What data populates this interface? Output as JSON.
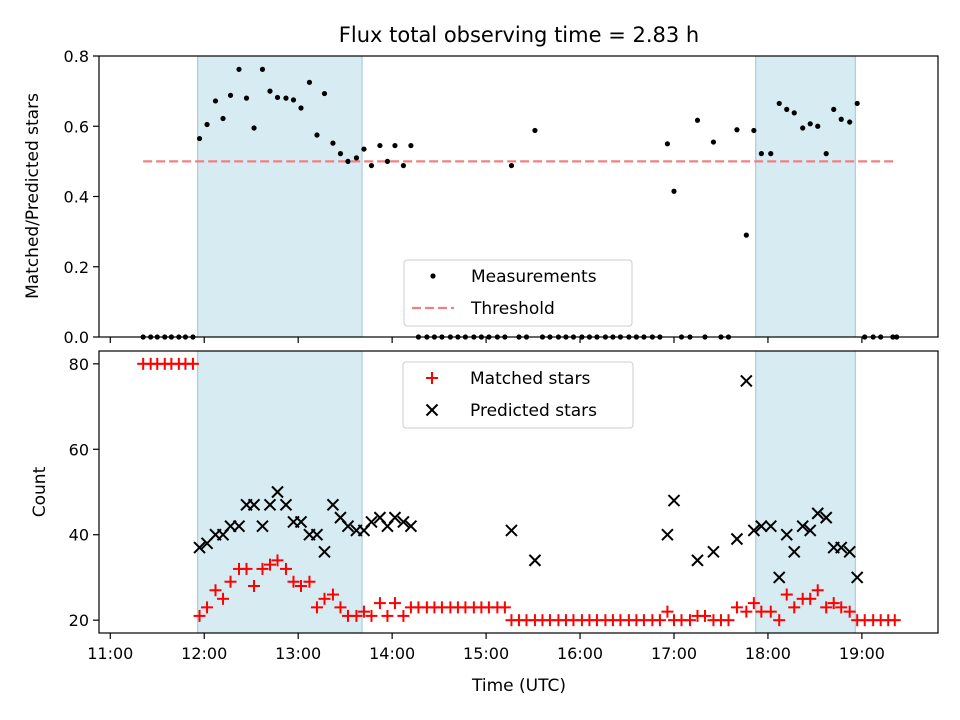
{
  "title": "Flux total observing time = 2.83 h",
  "chart_data": [
    {
      "type": "scatter",
      "ylabel": "Matched/Predicted stars",
      "xlim": [
        10.88,
        19.81
      ],
      "ylim": [
        0,
        0.8
      ],
      "yticks": [
        0.0,
        0.2,
        0.4,
        0.6,
        0.8
      ],
      "ytick_labels": [
        "0.0",
        "0.2",
        "0.4",
        "0.6",
        "0.8"
      ],
      "shaded_regions": [
        [
          11.93,
          13.68
        ],
        [
          17.87,
          18.93
        ]
      ],
      "threshold": {
        "value": 0.5,
        "x_range": [
          11.35,
          19.35
        ],
        "color": "#f08080"
      },
      "legend": {
        "position": "lower-center",
        "entries": [
          "Measurements",
          "Threshold"
        ]
      },
      "series": [
        {
          "name": "Measurements",
          "marker": "dot",
          "color": "#000000",
          "points": [
            [
              11.35,
              0
            ],
            [
              11.43,
              0
            ],
            [
              11.5,
              0
            ],
            [
              11.58,
              0
            ],
            [
              11.65,
              0
            ],
            [
              11.73,
              0
            ],
            [
              11.8,
              0
            ],
            [
              11.88,
              0
            ],
            [
              11.95,
              0.565
            ],
            [
              12.03,
              0.605
            ],
            [
              12.12,
              0.672
            ],
            [
              12.2,
              0.622
            ],
            [
              12.28,
              0.688
            ],
            [
              12.37,
              0.762
            ],
            [
              12.45,
              0.68
            ],
            [
              12.53,
              0.595
            ],
            [
              12.62,
              0.762
            ],
            [
              12.7,
              0.7
            ],
            [
              12.78,
              0.682
            ],
            [
              12.87,
              0.68
            ],
            [
              12.95,
              0.675
            ],
            [
              13.03,
              0.652
            ],
            [
              13.12,
              0.725
            ],
            [
              13.2,
              0.575
            ],
            [
              13.28,
              0.693
            ],
            [
              13.37,
              0.552
            ],
            [
              13.45,
              0.522
            ],
            [
              13.53,
              0.5
            ],
            [
              13.62,
              0.51
            ],
            [
              13.7,
              0.535
            ],
            [
              13.78,
              0.488
            ],
            [
              13.87,
              0.545
            ],
            [
              13.95,
              0.5
            ],
            [
              14.03,
              0.545
            ],
            [
              14.12,
              0.488
            ],
            [
              14.2,
              0.545
            ],
            [
              14.28,
              0
            ],
            [
              14.37,
              0
            ],
            [
              14.45,
              0
            ],
            [
              14.53,
              0
            ],
            [
              14.62,
              0
            ],
            [
              14.7,
              0
            ],
            [
              14.78,
              0
            ],
            [
              14.87,
              0
            ],
            [
              14.95,
              0
            ],
            [
              15.03,
              0
            ],
            [
              15.12,
              0
            ],
            [
              15.2,
              0
            ],
            [
              15.27,
              0.488
            ],
            [
              15.35,
              0
            ],
            [
              15.43,
              0
            ],
            [
              15.52,
              0.588
            ],
            [
              15.6,
              0
            ],
            [
              15.68,
              0
            ],
            [
              15.77,
              0
            ],
            [
              15.85,
              0
            ],
            [
              15.93,
              0
            ],
            [
              16.02,
              0
            ],
            [
              16.1,
              0
            ],
            [
              16.18,
              0
            ],
            [
              16.27,
              0
            ],
            [
              16.35,
              0
            ],
            [
              16.43,
              0
            ],
            [
              16.52,
              0
            ],
            [
              16.6,
              0
            ],
            [
              16.68,
              0
            ],
            [
              16.77,
              0
            ],
            [
              16.85,
              0
            ],
            [
              16.93,
              0.55
            ],
            [
              17.0,
              0.415
            ],
            [
              17.08,
              0
            ],
            [
              17.17,
              0
            ],
            [
              17.25,
              0.617
            ],
            [
              17.33,
              0
            ],
            [
              17.42,
              0.555
            ],
            [
              17.5,
              0
            ],
            [
              17.58,
              0
            ],
            [
              17.67,
              0.59
            ],
            [
              17.77,
              0.29
            ],
            [
              17.85,
              0.588
            ],
            [
              17.93,
              0.522
            ],
            [
              18.03,
              0.522
            ],
            [
              18.12,
              0.665
            ],
            [
              18.2,
              0.648
            ],
            [
              18.28,
              0.638
            ],
            [
              18.37,
              0.595
            ],
            [
              18.45,
              0.607
            ],
            [
              18.53,
              0.6
            ],
            [
              18.62,
              0.522
            ],
            [
              18.7,
              0.648
            ],
            [
              18.78,
              0.62
            ],
            [
              18.87,
              0.612
            ],
            [
              18.95,
              0.665
            ],
            [
              19.03,
              0
            ],
            [
              19.12,
              0
            ],
            [
              19.2,
              0
            ],
            [
              19.33,
              0
            ],
            [
              19.37,
              0
            ]
          ]
        }
      ]
    },
    {
      "type": "scatter",
      "xlabel": "Time (UTC)",
      "ylabel": "Count",
      "xlim": [
        10.88,
        19.81
      ],
      "ylim": [
        17,
        83
      ],
      "xticks": [
        11,
        12,
        13,
        14,
        15,
        16,
        17,
        18,
        19
      ],
      "xtick_labels": [
        "11:00",
        "12:00",
        "13:00",
        "14:00",
        "15:00",
        "16:00",
        "17:00",
        "18:00",
        "19:00"
      ],
      "yticks": [
        20,
        40,
        60,
        80
      ],
      "ytick_labels": [
        "20",
        "40",
        "60",
        "80"
      ],
      "shaded_regions": [
        [
          11.93,
          13.68
        ],
        [
          17.87,
          18.93
        ]
      ],
      "legend": {
        "position": "upper-center",
        "entries": [
          "Matched stars",
          "Predicted stars"
        ]
      },
      "series": [
        {
          "name": "Matched stars",
          "marker": "plus",
          "color": "#ff0000",
          "points": [
            [
              11.35,
              80
            ],
            [
              11.43,
              80
            ],
            [
              11.5,
              80
            ],
            [
              11.58,
              80
            ],
            [
              11.65,
              80
            ],
            [
              11.73,
              80
            ],
            [
              11.8,
              80
            ],
            [
              11.88,
              80
            ],
            [
              11.95,
              21
            ],
            [
              12.03,
              23
            ],
            [
              12.12,
              27
            ],
            [
              12.2,
              25
            ],
            [
              12.28,
              29
            ],
            [
              12.37,
              32
            ],
            [
              12.45,
              32
            ],
            [
              12.53,
              28
            ],
            [
              12.62,
              32
            ],
            [
              12.7,
              33
            ],
            [
              12.78,
              34
            ],
            [
              12.87,
              32
            ],
            [
              12.95,
              29
            ],
            [
              13.03,
              28
            ],
            [
              13.12,
              29
            ],
            [
              13.2,
              23
            ],
            [
              13.28,
              25
            ],
            [
              13.37,
              26
            ],
            [
              13.45,
              23
            ],
            [
              13.53,
              21
            ],
            [
              13.62,
              21
            ],
            [
              13.7,
              22
            ],
            [
              13.78,
              21
            ],
            [
              13.87,
              24
            ],
            [
              13.95,
              21
            ],
            [
              14.03,
              24
            ],
            [
              14.12,
              21
            ],
            [
              14.2,
              23
            ],
            [
              14.28,
              23
            ],
            [
              14.37,
              23
            ],
            [
              14.45,
              23
            ],
            [
              14.53,
              23
            ],
            [
              14.62,
              23
            ],
            [
              14.7,
              23
            ],
            [
              14.78,
              23
            ],
            [
              14.87,
              23
            ],
            [
              14.95,
              23
            ],
            [
              15.03,
              23
            ],
            [
              15.12,
              23
            ],
            [
              15.2,
              23
            ],
            [
              15.27,
              20
            ],
            [
              15.35,
              20
            ],
            [
              15.43,
              20
            ],
            [
              15.52,
              20
            ],
            [
              15.6,
              20
            ],
            [
              15.68,
              20
            ],
            [
              15.77,
              20
            ],
            [
              15.85,
              20
            ],
            [
              15.93,
              20
            ],
            [
              16.02,
              20
            ],
            [
              16.1,
              20
            ],
            [
              16.18,
              20
            ],
            [
              16.27,
              20
            ],
            [
              16.35,
              20
            ],
            [
              16.43,
              20
            ],
            [
              16.52,
              20
            ],
            [
              16.6,
              20
            ],
            [
              16.68,
              20
            ],
            [
              16.77,
              20
            ],
            [
              16.85,
              20
            ],
            [
              16.93,
              22
            ],
            [
              17.0,
              20
            ],
            [
              17.08,
              20
            ],
            [
              17.17,
              20
            ],
            [
              17.25,
              21
            ],
            [
              17.33,
              21
            ],
            [
              17.42,
              20
            ],
            [
              17.5,
              20
            ],
            [
              17.58,
              20
            ],
            [
              17.67,
              23
            ],
            [
              17.77,
              22
            ],
            [
              17.85,
              24
            ],
            [
              17.93,
              22
            ],
            [
              18.03,
              22
            ],
            [
              18.12,
              20
            ],
            [
              18.2,
              26
            ],
            [
              18.28,
              23
            ],
            [
              18.37,
              25
            ],
            [
              18.45,
              25
            ],
            [
              18.53,
              27
            ],
            [
              18.62,
              23
            ],
            [
              18.7,
              24
            ],
            [
              18.78,
              23
            ],
            [
              18.87,
              22
            ],
            [
              18.95,
              20
            ],
            [
              19.03,
              20
            ],
            [
              19.12,
              20
            ],
            [
              19.2,
              20
            ],
            [
              19.28,
              20
            ],
            [
              19.35,
              20
            ]
          ]
        },
        {
          "name": "Predicted stars",
          "marker": "x",
          "color": "#000000",
          "points": [
            [
              11.95,
              37
            ],
            [
              12.03,
              38
            ],
            [
              12.12,
              40
            ],
            [
              12.2,
              40
            ],
            [
              12.28,
              42
            ],
            [
              12.37,
              42
            ],
            [
              12.45,
              47
            ],
            [
              12.53,
              47
            ],
            [
              12.62,
              42
            ],
            [
              12.7,
              47
            ],
            [
              12.78,
              50
            ],
            [
              12.87,
              47
            ],
            [
              12.95,
              43
            ],
            [
              13.03,
              43
            ],
            [
              13.12,
              40
            ],
            [
              13.2,
              40
            ],
            [
              13.28,
              36
            ],
            [
              13.37,
              47
            ],
            [
              13.45,
              44
            ],
            [
              13.53,
              42
            ],
            [
              13.62,
              41
            ],
            [
              13.7,
              41
            ],
            [
              13.78,
              43
            ],
            [
              13.87,
              44
            ],
            [
              13.95,
              42
            ],
            [
              14.03,
              44
            ],
            [
              14.12,
              43
            ],
            [
              14.2,
              42
            ],
            [
              15.27,
              41
            ],
            [
              15.52,
              34
            ],
            [
              16.93,
              40
            ],
            [
              17.0,
              48
            ],
            [
              17.25,
              34
            ],
            [
              17.42,
              36
            ],
            [
              17.67,
              39
            ],
            [
              17.77,
              76
            ],
            [
              17.85,
              41
            ],
            [
              17.93,
              42
            ],
            [
              18.03,
              42
            ],
            [
              18.12,
              30
            ],
            [
              18.2,
              40
            ],
            [
              18.28,
              36
            ],
            [
              18.37,
              42
            ],
            [
              18.45,
              41
            ],
            [
              18.53,
              45
            ],
            [
              18.62,
              44
            ],
            [
              18.7,
              37
            ],
            [
              18.78,
              37
            ],
            [
              18.87,
              36
            ],
            [
              18.95,
              30
            ]
          ]
        }
      ]
    }
  ]
}
